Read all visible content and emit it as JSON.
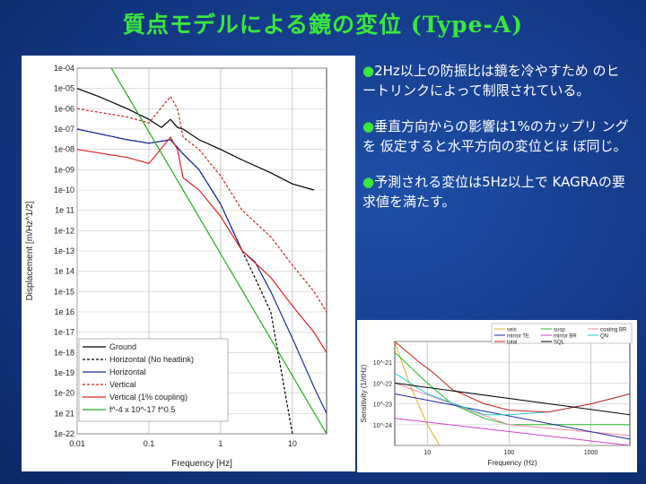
{
  "slide": {
    "title": "質点モデルによる鏡の変位 (Type-A)",
    "bullets": [
      "2Hz以上の防振比は鏡を冷やすため のヒートリンクによって制限されている。",
      "垂直方向からの影響は1%のカップリ ングを 仮定すると水平方向の変位とほ ぼ同じ。",
      "予測される変位は5Hz以上で KAGRAの要求値を満たす。"
    ]
  },
  "chart_data": [
    {
      "type": "line",
      "xlabel": "Frequency [Hz]",
      "ylabel": "Displacement [m/Hz^1/2]",
      "x_scale": "log",
      "y_scale": "log",
      "xlim": [
        0.01,
        30
      ],
      "ylim": [
        1e-22,
        0.0001
      ],
      "x_ticks": [
        "0.01",
        "0.1",
        "1",
        "10"
      ],
      "y_ticks": [
        "1e-04",
        "1e-05",
        "1e-06",
        "1e-07",
        "1e-08",
        "1e-09",
        "1e-10",
        "1e 11",
        "1e-12",
        "1e-13",
        "1e 14",
        "1e-15",
        "1e 16",
        "1e-17",
        "1e-18",
        "1e-19",
        "1e-20",
        "1e 21",
        "1e-22"
      ],
      "legend_position": "bottom-left",
      "series": [
        {
          "name": "Ground",
          "color": "#000000",
          "style": "solid",
          "x": [
            0.01,
            0.02,
            0.05,
            0.1,
            0.15,
            0.2,
            0.25,
            0.3,
            0.5,
            1,
            2,
            5,
            10,
            20
          ],
          "y": [
            1e-05,
            4e-06,
            1e-06,
            3e-07,
            1.2e-07,
            3e-07,
            1.2e-07,
            1e-07,
            3e-08,
            1e-08,
            3e-09,
            7e-10,
            2e-10,
            1e-10
          ]
        },
        {
          "name": "Horizontal (No heatlink)",
          "color": "#000000",
          "style": "dashed",
          "x": [
            0.01,
            0.05,
            0.1,
            0.2,
            0.3,
            0.5,
            1,
            2,
            3,
            5,
            10
          ],
          "y": [
            1e-07,
            3e-08,
            2e-08,
            3e-08,
            6e-09,
            1e-09,
            2e-11,
            1e-13,
            5e-15,
            1e-16,
            1e-22
          ]
        },
        {
          "name": "Horizontal",
          "color": "#1a2aa0",
          "style": "solid",
          "x": [
            0.01,
            0.05,
            0.1,
            0.2,
            0.3,
            0.5,
            1,
            2,
            3,
            5,
            10,
            20,
            30
          ],
          "y": [
            1e-07,
            3e-08,
            2e-08,
            3e-08,
            6e-09,
            1e-09,
            2e-11,
            1e-13,
            3e-14,
            1e-15,
            5e-18,
            2e-20,
            1e-21
          ]
        },
        {
          "name": "Vertical",
          "color": "#cc2222",
          "style": "dashed",
          "x": [
            0.01,
            0.05,
            0.1,
            0.2,
            0.25,
            0.3,
            0.5,
            1,
            2,
            5,
            10,
            20,
            30
          ],
          "y": [
            1e-06,
            4e-07,
            2e-07,
            4e-06,
            1e-06,
            4e-08,
            1e-08,
            5e-10,
            1e-11,
            5e-13,
            2e-14,
            1e-15,
            1e-16
          ]
        },
        {
          "name": "Vertical (1% coupling)",
          "color": "#dd2222",
          "style": "solid",
          "x": [
            0.01,
            0.05,
            0.1,
            0.2,
            0.25,
            0.3,
            0.5,
            1,
            2,
            5,
            10,
            20,
            30
          ],
          "y": [
            1e-08,
            4e-09,
            2e-09,
            4e-08,
            1e-08,
            4e-10,
            1e-10,
            5e-12,
            1e-13,
            5e-15,
            2e-16,
            1e-17,
            1e-18
          ]
        },
        {
          "name": "f^-4 x 10^-17 f^0.5",
          "color": "#22aa22",
          "style": "solid",
          "x": [
            0.03,
            30
          ],
          "y": [
            0.0001,
            1e-22
          ]
        }
      ]
    },
    {
      "type": "line",
      "xlabel": "Frequency (Hz)",
      "ylabel": "Sensitivity (1/rtHz)",
      "x_scale": "log",
      "y_scale": "log",
      "xlim": [
        4,
        3000
      ],
      "ylim": [
        1e-25,
        1e-20
      ],
      "x_ticks": [
        "10",
        "100",
        "1000"
      ],
      "y_ticks": [
        "10^-21",
        "10^-22",
        "10^-23",
        "10^-24"
      ],
      "legend_position": "top",
      "series": [
        {
          "name": "seis",
          "color": "#e0b020",
          "x": [
            4,
            6,
            10,
            20
          ],
          "y": [
            1e-20,
            1e-22,
            1e-24,
            1e-26
          ]
        },
        {
          "name": "susp",
          "color": "#22bb22",
          "x": [
            4,
            10,
            20,
            50,
            100,
            500,
            1000,
            3000
          ],
          "y": [
            3e-21,
            1e-22,
            1e-23,
            2e-24,
            1e-24,
            1e-24,
            1e-24,
            1e-24
          ]
        },
        {
          "name": "coating BR",
          "color": "#ee88aa",
          "x": [
            4,
            100,
            3000
          ],
          "y": [
            1e-22,
            1e-24,
            3e-25
          ]
        },
        {
          "name": "mirror TE",
          "color": "#1a2aa0",
          "x": [
            4,
            3000
          ],
          "y": [
            3e-23,
            2e-25
          ]
        },
        {
          "name": "mirror BR",
          "color": "#cc44cc",
          "x": [
            4,
            3000
          ],
          "y": [
            2e-24,
            1e-25
          ]
        },
        {
          "name": "QN",
          "color": "#22cccc",
          "x": [
            4,
            10,
            50,
            100,
            300,
            1000,
            3000
          ],
          "y": [
            3e-22,
            3e-23,
            3e-24,
            3e-24,
            4e-24,
            1e-23,
            3e-23
          ]
        },
        {
          "name": "total",
          "color": "#cc2222",
          "x": [
            4,
            8,
            12,
            20,
            50,
            100,
            300,
            1000,
            3000
          ],
          "y": [
            1e-20,
            1e-21,
            3e-22,
            5e-23,
            1e-23,
            5e-24,
            4e-24,
            1e-23,
            3e-23
          ]
        },
        {
          "name": "SQL",
          "color": "#000000",
          "x": [
            4,
            3000
          ],
          "y": [
            1e-22,
            3e-24
          ]
        }
      ]
    }
  ]
}
